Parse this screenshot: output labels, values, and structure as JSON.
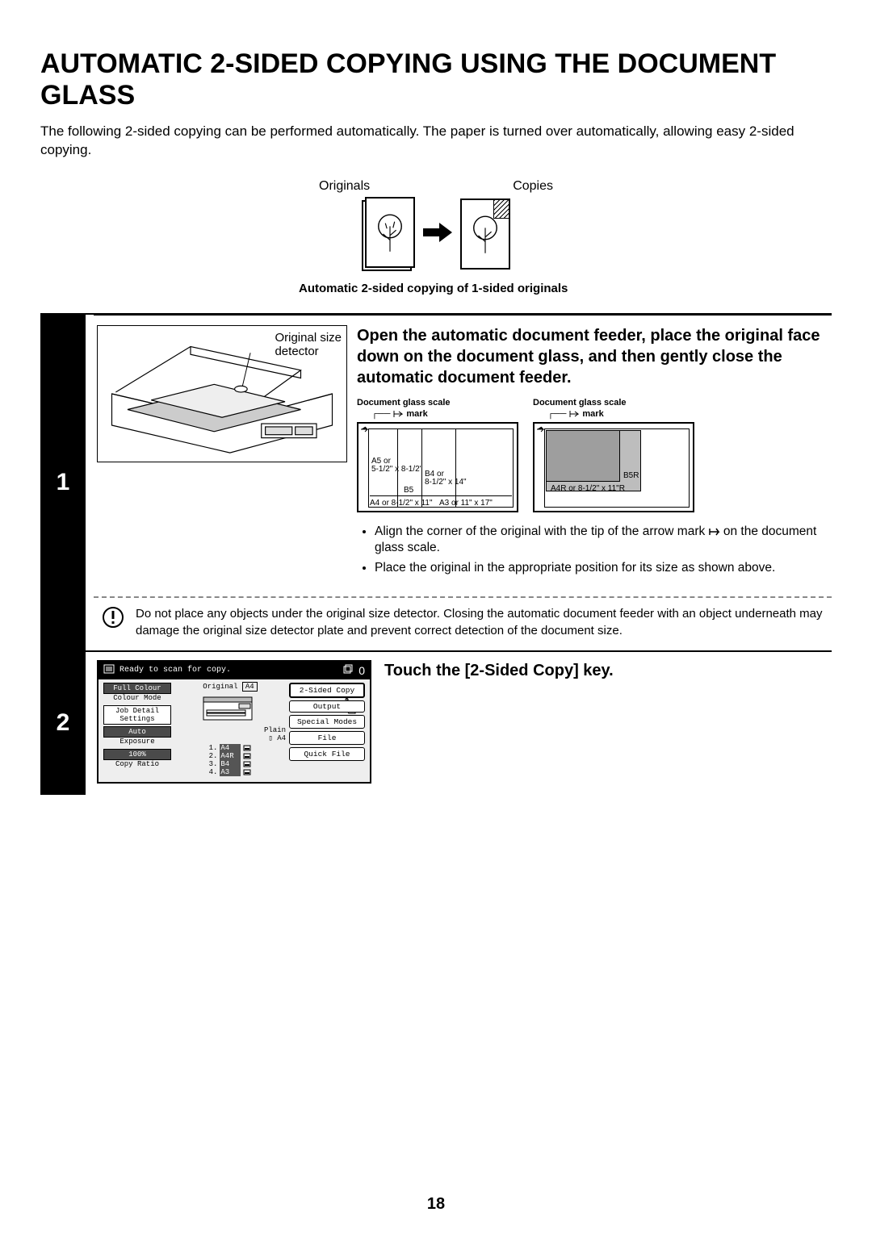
{
  "title": "AUTOMATIC 2-SIDED COPYING USING THE DOCUMENT GLASS",
  "intro": "The following 2-sided copying can be performed automatically. The paper is turned over automatically, allowing easy 2-sided copying.",
  "ocLabels": {
    "originals": "Originals",
    "copies": "Copies"
  },
  "caption": "Automatic 2-sided copying of 1-sided originals",
  "step1": {
    "number": "1",
    "osdLabel1": "Original size",
    "osdLabel2": "detector",
    "heading": "Open the automatic document feeder, place the original face down on the document glass, and then gently close the automatic document feeder.",
    "scaleTitle": "Document glass scale",
    "markLabel": "mark",
    "sizes": {
      "a5": "A5 or\n5-1/2\" x 8-1/2\"",
      "b5": "B5",
      "b4": "B4 or\n8-1/2\" x 14\"",
      "a4": "A4 or 8-1/2\" x 11\"",
      "a3": "A3 or 11\" x 17\"",
      "b5r": "B5R",
      "a4r": "A4R or 8-1/2\" x 11\"R"
    },
    "bullet1a": "Align the corner of the original with the tip of the arrow mark ",
    "bullet1b": " on the document glass scale.",
    "bullet2": "Place the original in the appropriate position for its size as shown above.",
    "note": "Do not place any objects under the original size detector. Closing the automatic document feeder with an object underneath may damage the original size detector plate and prevent correct detection of the document size."
  },
  "step2": {
    "number": "2",
    "heading": "Touch the [2-Sided Copy] key.",
    "panel": {
      "status": "Ready to scan for copy.",
      "count": "0",
      "left": {
        "fullColour": "Full Colour",
        "colourMode": "Colour Mode",
        "jobDetail": "Job Detail\nSettings",
        "auto": "Auto",
        "exposure": "Exposure",
        "pct": "100%",
        "copyRatio": "Copy Ratio"
      },
      "mid": {
        "originalLabel": "Original",
        "originalSize": "A4",
        "plain": "Plain",
        "plainSize": "A4",
        "trays": [
          {
            "n": "1.",
            "sz": "A4"
          },
          {
            "n": "2.",
            "sz": "A4R"
          },
          {
            "n": "3.",
            "sz": "B4"
          },
          {
            "n": "4.",
            "sz": "A3"
          }
        ]
      },
      "right": {
        "twoSided": "2-Sided Copy",
        "output": "Output",
        "special": "Special Modes",
        "file": "File",
        "quick": "Quick File"
      }
    }
  },
  "pageNumber": "18"
}
